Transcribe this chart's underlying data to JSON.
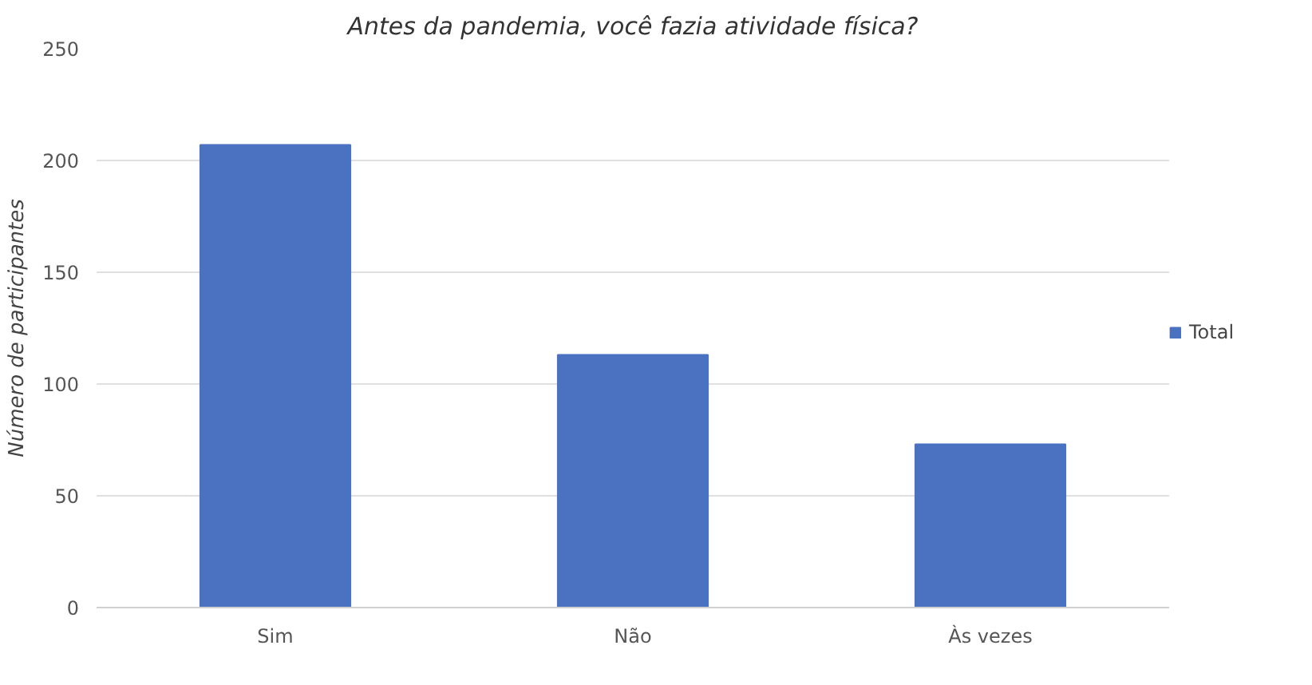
{
  "chart_data": {
    "type": "bar",
    "title": "Antes da pandemia, você fazia atividade física?",
    "ylabel": "Número de participantes",
    "categories": [
      "Sim",
      "Não",
      "Às vezes"
    ],
    "series": [
      {
        "name": "Total",
        "color": "#4a72c0",
        "values": [
          207,
          113,
          73
        ]
      }
    ],
    "ylim": [
      0,
      250
    ],
    "yticks": [
      0,
      50,
      100,
      150,
      200,
      250
    ],
    "grid": "y",
    "legend": "right"
  }
}
